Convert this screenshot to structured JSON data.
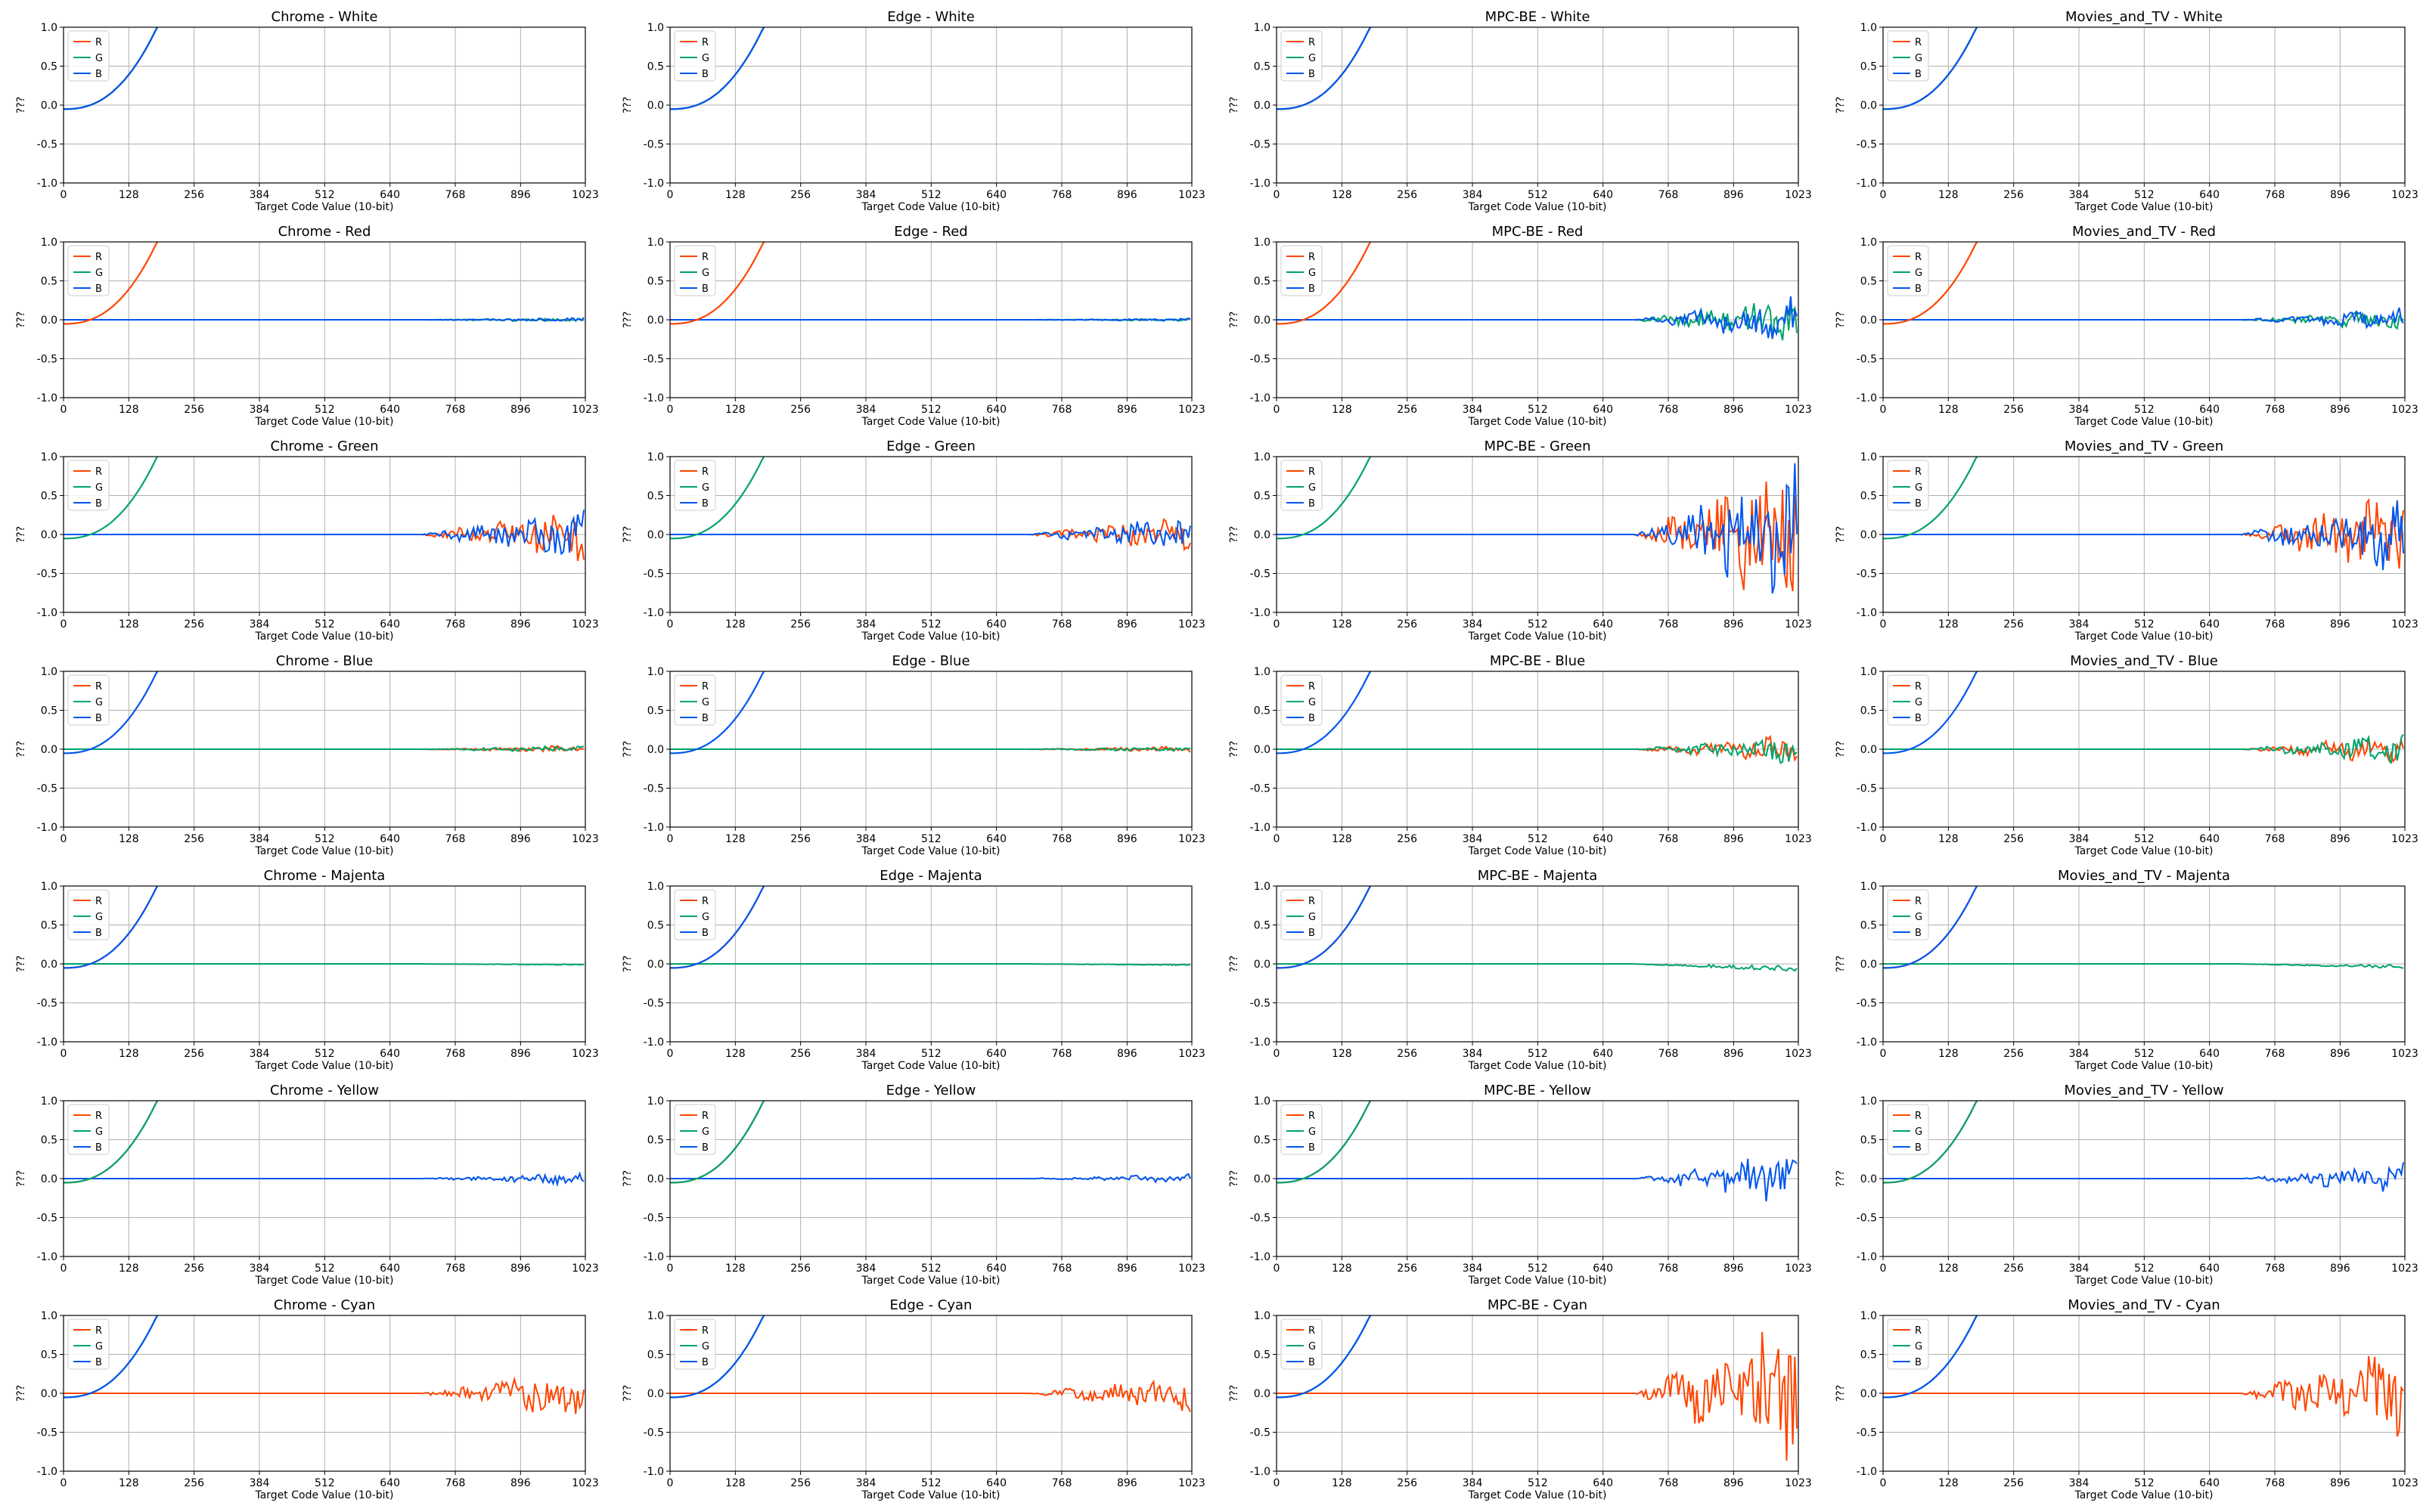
{
  "figure": {
    "players": [
      "Chrome",
      "Edge",
      "MPC-BE",
      "Movies_and_TV"
    ],
    "patterns": [
      "White",
      "Red",
      "Green",
      "Blue",
      "Majenta",
      "Yellow",
      "Cyan"
    ],
    "title_separator": " - ",
    "xlabel": "Target Code Value (10-bit)",
    "ylabel": "???",
    "xticks": [
      0,
      128,
      256,
      384,
      512,
      640,
      768,
      896,
      1023
    ],
    "yticks": [
      "-1.0",
      "-0.5",
      "0.0",
      "0.5",
      "1.0"
    ],
    "legend_labels": [
      "R",
      "G",
      "B"
    ],
    "legend_placement": "upper-left"
  },
  "chart_data": {
    "type": "line",
    "grid": true,
    "xlim": [
      0,
      1023
    ],
    "ylim": [
      -1.0,
      1.0
    ],
    "series_colors": {
      "R": "#ff4500",
      "G": "#00a36c",
      "B": "#0055ee"
    },
    "curve_model": "y = 65 * ((x/1023)^2.4 - 0.0008) capped at 1.0 (dominant channels)",
    "deviation_level": {
      "Chrome": {
        "White": 0.0,
        "Red": 0.03,
        "Green": 0.35,
        "Blue": 0.05,
        "Majenta": 0.04,
        "Yellow": 0.08,
        "Cyan": 0.35
      },
      "Edge": {
        "White": 0.0,
        "Red": 0.02,
        "Green": 0.25,
        "Blue": 0.04,
        "Majenta": 0.05,
        "Yellow": 0.06,
        "Cyan": 0.25
      },
      "MPC-BE": {
        "White": 0.0,
        "Red": 0.3,
        "Green": 1.0,
        "Blue": 0.2,
        "Majenta": 0.25,
        "Yellow": 0.35,
        "Cyan": 1.0
      },
      "Movies_and_TV": {
        "White": 0.0,
        "Red": 0.15,
        "Green": 0.55,
        "Blue": 0.2,
        "Majenta": 0.15,
        "Yellow": 0.2,
        "Cyan": 0.65
      }
    }
  }
}
